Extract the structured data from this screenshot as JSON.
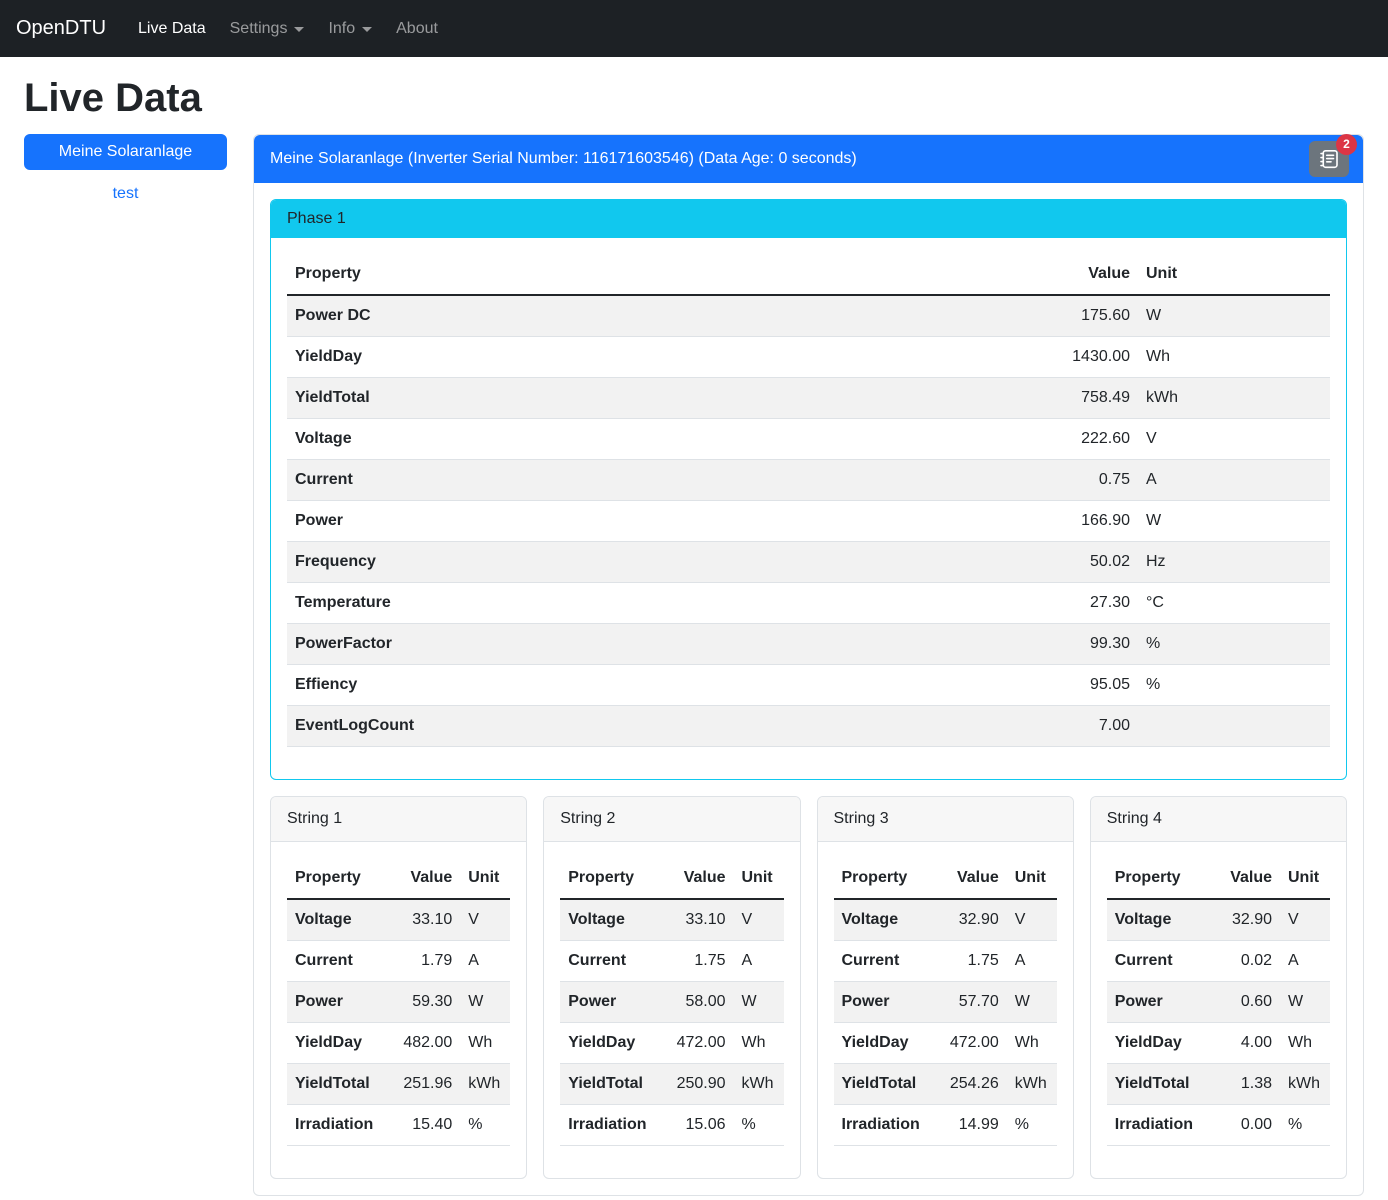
{
  "colors": {
    "primary_blue": "#1673fd",
    "info_cyan": "#11c8ee",
    "danger_red": "#dc3545",
    "navbar_bg": "#1d2125",
    "secondary_gray": "#6c757d",
    "stripe_gray": "#f2f2f2"
  },
  "navbar": {
    "brand": "OpenDTU",
    "items": [
      {
        "label": "Live Data",
        "active": true,
        "has_dropdown": false
      },
      {
        "label": "Settings",
        "active": false,
        "has_dropdown": true
      },
      {
        "label": "Info",
        "active": false,
        "has_dropdown": true
      },
      {
        "label": "About",
        "active": false,
        "has_dropdown": false
      }
    ]
  },
  "page_title": "Live Data",
  "sidebar": {
    "inverter_button": "Meine Solaranlage",
    "secondary_link": "test"
  },
  "panel": {
    "header": "Meine Solaranlage (Inverter Serial Number: 116171603546) (Data Age: 0 seconds)",
    "eventlog_badge": "2"
  },
  "table_columns": {
    "property": "Property",
    "value": "Value",
    "unit": "Unit"
  },
  "phase": {
    "title": "Phase 1",
    "rows": [
      {
        "property": "Power DC",
        "value": "175.60",
        "unit": "W"
      },
      {
        "property": "YieldDay",
        "value": "1430.00",
        "unit": "Wh"
      },
      {
        "property": "YieldTotal",
        "value": "758.49",
        "unit": "kWh"
      },
      {
        "property": "Voltage",
        "value": "222.60",
        "unit": "V"
      },
      {
        "property": "Current",
        "value": "0.75",
        "unit": "A"
      },
      {
        "property": "Power",
        "value": "166.90",
        "unit": "W"
      },
      {
        "property": "Frequency",
        "value": "50.02",
        "unit": "Hz"
      },
      {
        "property": "Temperature",
        "value": "27.30",
        "unit": "°C"
      },
      {
        "property": "PowerFactor",
        "value": "99.30",
        "unit": "%"
      },
      {
        "property": "Effiency",
        "value": "95.05",
        "unit": "%"
      },
      {
        "property": "EventLogCount",
        "value": "7.00",
        "unit": ""
      }
    ]
  },
  "strings": [
    {
      "title": "String 1",
      "rows": [
        {
          "property": "Voltage",
          "value": "33.10",
          "unit": "V"
        },
        {
          "property": "Current",
          "value": "1.79",
          "unit": "A"
        },
        {
          "property": "Power",
          "value": "59.30",
          "unit": "W"
        },
        {
          "property": "YieldDay",
          "value": "482.00",
          "unit": "Wh"
        },
        {
          "property": "YieldTotal",
          "value": "251.96",
          "unit": "kWh"
        },
        {
          "property": "Irradiation",
          "value": "15.40",
          "unit": "%"
        }
      ]
    },
    {
      "title": "String 2",
      "rows": [
        {
          "property": "Voltage",
          "value": "33.10",
          "unit": "V"
        },
        {
          "property": "Current",
          "value": "1.75",
          "unit": "A"
        },
        {
          "property": "Power",
          "value": "58.00",
          "unit": "W"
        },
        {
          "property": "YieldDay",
          "value": "472.00",
          "unit": "Wh"
        },
        {
          "property": "YieldTotal",
          "value": "250.90",
          "unit": "kWh"
        },
        {
          "property": "Irradiation",
          "value": "15.06",
          "unit": "%"
        }
      ]
    },
    {
      "title": "String 3",
      "rows": [
        {
          "property": "Voltage",
          "value": "32.90",
          "unit": "V"
        },
        {
          "property": "Current",
          "value": "1.75",
          "unit": "A"
        },
        {
          "property": "Power",
          "value": "57.70",
          "unit": "W"
        },
        {
          "property": "YieldDay",
          "value": "472.00",
          "unit": "Wh"
        },
        {
          "property": "YieldTotal",
          "value": "254.26",
          "unit": "kWh"
        },
        {
          "property": "Irradiation",
          "value": "14.99",
          "unit": "%"
        }
      ]
    },
    {
      "title": "String 4",
      "rows": [
        {
          "property": "Voltage",
          "value": "32.90",
          "unit": "V"
        },
        {
          "property": "Current",
          "value": "0.02",
          "unit": "A"
        },
        {
          "property": "Power",
          "value": "0.60",
          "unit": "W"
        },
        {
          "property": "YieldDay",
          "value": "4.00",
          "unit": "Wh"
        },
        {
          "property": "YieldTotal",
          "value": "1.38",
          "unit": "kWh"
        },
        {
          "property": "Irradiation",
          "value": "0.00",
          "unit": "%"
        }
      ]
    }
  ]
}
